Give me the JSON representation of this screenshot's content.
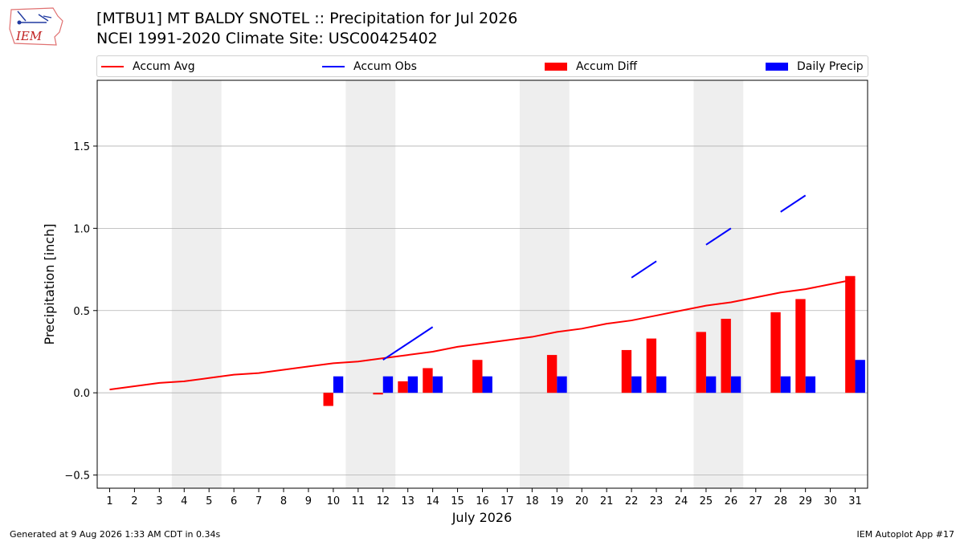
{
  "header": {
    "title_line1": "[MTBU1] MT BALDY SNOTEL :: Precipitation for Jul 2026",
    "title_line2": "NCEI 1991-2020 Climate Site: USC00425402"
  },
  "logo": {
    "text": "IEM",
    "icon": "iem-iowa-logo"
  },
  "legend": {
    "accum_avg": "Accum Avg",
    "accum_obs": "Accum Obs",
    "accum_diff": "Accum Diff",
    "daily_precip": "Daily Precip"
  },
  "footer": {
    "generated": "Generated at 9 Aug 2026 1:33 AM CDT in 0.34s",
    "app": "IEM Autoplot App #17"
  },
  "colors": {
    "avg": "#ff0000",
    "obs": "#0000ff",
    "diff": "#ff0000",
    "daily": "#0000ff",
    "weekend": "#eeeeee",
    "grid": "#b0b0b0"
  },
  "chart_data": {
    "type": "bar",
    "xlabel": "July 2026",
    "ylabel": "Precipitation [inch]",
    "xlim": [
      0.5,
      31.5
    ],
    "ylim": [
      -0.58,
      1.9
    ],
    "yticks": [
      -0.5,
      0.0,
      0.5,
      1.0,
      1.5
    ],
    "ytick_labels": [
      "−0.5",
      "0.0",
      "0.5",
      "1.0",
      "1.5"
    ],
    "days": [
      1,
      2,
      3,
      4,
      5,
      6,
      7,
      8,
      9,
      10,
      11,
      12,
      13,
      14,
      15,
      16,
      17,
      18,
      19,
      20,
      21,
      22,
      23,
      24,
      25,
      26,
      27,
      28,
      29,
      30,
      31
    ],
    "weekend_spans": [
      [
        3.5,
        5.5
      ],
      [
        10.5,
        12.5
      ],
      [
        17.5,
        19.5
      ],
      [
        24.5,
        26.5
      ]
    ],
    "grid": "horizontal",
    "series": [
      {
        "name": "Accum Avg",
        "kind": "line",
        "values": [
          0.02,
          0.04,
          0.06,
          0.07,
          0.09,
          0.11,
          0.12,
          0.14,
          0.16,
          0.18,
          0.19,
          0.21,
          0.23,
          0.25,
          0.28,
          0.3,
          0.32,
          0.34,
          0.37,
          0.39,
          0.42,
          0.44,
          0.47,
          0.5,
          0.53,
          0.55,
          0.58,
          0.61,
          0.63,
          0.66,
          0.69
        ]
      },
      {
        "name": "Accum Obs",
        "kind": "line",
        "values": [
          null,
          null,
          null,
          null,
          null,
          null,
          null,
          null,
          null,
          null,
          null,
          0.2,
          0.3,
          0.4,
          null,
          null,
          null,
          null,
          null,
          null,
          null,
          0.7,
          0.8,
          null,
          0.9,
          1.0,
          null,
          1.1,
          1.2,
          null,
          null
        ]
      },
      {
        "name": "Accum Diff",
        "kind": "bar",
        "values": [
          null,
          null,
          null,
          null,
          null,
          null,
          null,
          null,
          null,
          -0.08,
          null,
          -0.01,
          0.07,
          0.15,
          null,
          0.2,
          null,
          null,
          0.23,
          null,
          null,
          0.26,
          0.33,
          null,
          0.37,
          0.45,
          null,
          0.49,
          0.57,
          null,
          0.71
        ]
      },
      {
        "name": "Daily Precip",
        "kind": "bar",
        "values": [
          null,
          null,
          null,
          null,
          null,
          null,
          null,
          null,
          null,
          0.1,
          null,
          0.1,
          0.1,
          0.1,
          null,
          0.1,
          null,
          null,
          0.1,
          null,
          null,
          0.1,
          0.1,
          null,
          0.1,
          0.1,
          null,
          0.1,
          0.1,
          null,
          0.2
        ]
      }
    ]
  }
}
